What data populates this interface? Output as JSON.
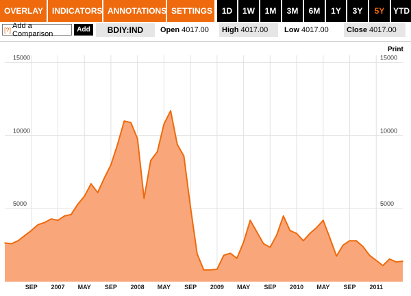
{
  "menus": [
    {
      "label": "OVERLAY"
    },
    {
      "label": "INDICATORS"
    },
    {
      "label": "ANNOTATIONS"
    },
    {
      "label": "SETTINGS"
    }
  ],
  "ranges": [
    {
      "label": "1D",
      "active": false
    },
    {
      "label": "1W",
      "active": false
    },
    {
      "label": "1M",
      "active": false
    },
    {
      "label": "3M",
      "active": false
    },
    {
      "label": "6M",
      "active": false
    },
    {
      "label": "1Y",
      "active": false
    },
    {
      "label": "3Y",
      "active": false
    },
    {
      "label": "5Y",
      "active": true
    },
    {
      "label": "YTD",
      "active": false
    }
  ],
  "compare": {
    "help_icon": "[?]",
    "placeholder": "Add a Comparison",
    "add_label": "Add"
  },
  "ticker": "BDIY:IND",
  "stats": {
    "open": {
      "label": "Open",
      "value": "4017.00"
    },
    "high": {
      "label": "High",
      "value": "4017.00"
    },
    "low": {
      "label": "Low",
      "value": "4017.00"
    },
    "close": {
      "label": "Close",
      "value": "4017.00"
    }
  },
  "print_label": "Print",
  "colors": {
    "accent": "#ee6a0d",
    "fill": "#f9a77a",
    "line": "#ee6a0d"
  },
  "chart_data": {
    "type": "area",
    "title": "",
    "xlabel": "",
    "ylabel": "",
    "ylim": [
      0,
      15500
    ],
    "yticks": [
      "5000",
      "10000",
      "15000"
    ],
    "xticks": [
      "SEP",
      "2007",
      "MAY",
      "SEP",
      "2008",
      "MAY",
      "SEP",
      "2009",
      "MAY",
      "SEP",
      "2010",
      "MAY",
      "SEP",
      "2011"
    ],
    "grid": true,
    "series": [
      {
        "values": [
          {
            "x": "2006-05",
            "y": 2650
          },
          {
            "x": "2006-06",
            "y": 2600
          },
          {
            "x": "2006-07",
            "y": 2800
          },
          {
            "x": "2006-08",
            "y": 3150
          },
          {
            "x": "2006-09",
            "y": 3500
          },
          {
            "x": "2006-10",
            "y": 3900
          },
          {
            "x": "2006-11",
            "y": 4050
          },
          {
            "x": "2006-12",
            "y": 4300
          },
          {
            "x": "2007-01",
            "y": 4200
          },
          {
            "x": "2007-02",
            "y": 4500
          },
          {
            "x": "2007-03",
            "y": 4600
          },
          {
            "x": "2007-04",
            "y": 5300
          },
          {
            "x": "2007-05",
            "y": 5850
          },
          {
            "x": "2007-06",
            "y": 6700
          },
          {
            "x": "2007-07",
            "y": 6100
          },
          {
            "x": "2007-08",
            "y": 7100
          },
          {
            "x": "2007-09",
            "y": 8000
          },
          {
            "x": "2007-10",
            "y": 9400
          },
          {
            "x": "2007-11",
            "y": 11000
          },
          {
            "x": "2007-12",
            "y": 10900
          },
          {
            "x": "2008-01",
            "y": 9800
          },
          {
            "x": "2008-02",
            "y": 5700
          },
          {
            "x": "2008-03",
            "y": 8300
          },
          {
            "x": "2008-04",
            "y": 8900
          },
          {
            "x": "2008-05",
            "y": 10800
          },
          {
            "x": "2008-06",
            "y": 11700
          },
          {
            "x": "2008-07",
            "y": 9400
          },
          {
            "x": "2008-08",
            "y": 8600
          },
          {
            "x": "2008-09",
            "y": 5100
          },
          {
            "x": "2008-10",
            "y": 1900
          },
          {
            "x": "2008-11",
            "y": 800
          },
          {
            "x": "2008-12",
            "y": 800
          },
          {
            "x": "2009-01",
            "y": 850
          },
          {
            "x": "2009-02",
            "y": 1800
          },
          {
            "x": "2009-03",
            "y": 1950
          },
          {
            "x": "2009-04",
            "y": 1600
          },
          {
            "x": "2009-05",
            "y": 2700
          },
          {
            "x": "2009-06",
            "y": 4200
          },
          {
            "x": "2009-07",
            "y": 3400
          },
          {
            "x": "2009-08",
            "y": 2600
          },
          {
            "x": "2009-09",
            "y": 2350
          },
          {
            "x": "2009-10",
            "y": 3200
          },
          {
            "x": "2009-11",
            "y": 4500
          },
          {
            "x": "2009-12",
            "y": 3500
          },
          {
            "x": "2010-01",
            "y": 3300
          },
          {
            "x": "2010-02",
            "y": 2800
          },
          {
            "x": "2010-03",
            "y": 3300
          },
          {
            "x": "2010-04",
            "y": 3700
          },
          {
            "x": "2010-05",
            "y": 4200
          },
          {
            "x": "2010-06",
            "y": 3000
          },
          {
            "x": "2010-07",
            "y": 1750
          },
          {
            "x": "2010-08",
            "y": 2500
          },
          {
            "x": "2010-09",
            "y": 2800
          },
          {
            "x": "2010-10",
            "y": 2800
          },
          {
            "x": "2010-11",
            "y": 2400
          },
          {
            "x": "2010-12",
            "y": 1800
          },
          {
            "x": "2011-01",
            "y": 1450
          },
          {
            "x": "2011-02",
            "y": 1100
          },
          {
            "x": "2011-03",
            "y": 1550
          },
          {
            "x": "2011-04",
            "y": 1350
          },
          {
            "x": "2011-05",
            "y": 1400
          }
        ]
      }
    ]
  }
}
